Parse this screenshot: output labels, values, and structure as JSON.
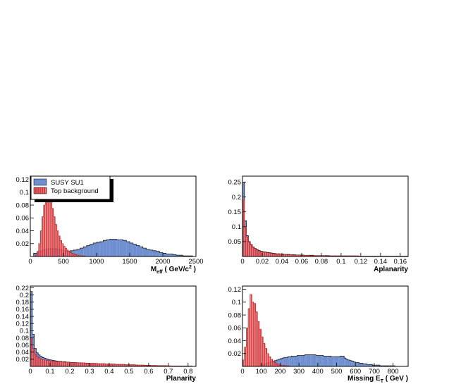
{
  "colors": {
    "signal": "#6f8fd0",
    "background": "#d93a3e",
    "outline": "#000000",
    "frame": "#000000"
  },
  "legend": {
    "entries": [
      "SUSY SU1",
      "Top background"
    ]
  },
  "chart_data": [
    {
      "type": "histogram",
      "xlabel": "M",
      "xlabel_sub": "eff",
      "xlabel_unit": " ( GeV/c",
      "xlabel_sup": "2",
      "xlabel_end": " )",
      "xlim": [
        0,
        2500
      ],
      "ylim": [
        0,
        0.125
      ],
      "xticks": [
        0,
        500,
        1000,
        1500,
        2000,
        2500
      ],
      "yticks": [
        0.02,
        0.04,
        0.06,
        0.08,
        0.1,
        0.12
      ],
      "xtick_labels": [
        "0",
        "500",
        "1000",
        "1500",
        "2000",
        "2500"
      ],
      "ytick_labels": [
        "0.02",
        "0.04",
        "0.06",
        "0.08",
        "0.1",
        "0.12"
      ],
      "legend_position": "top-left",
      "series": [
        {
          "name": "SUSY SU1",
          "bin_start": 0,
          "bin_width": 50,
          "values": [
            0.0,
            0.005,
            0.007,
            0.009,
            0.011,
            0.012,
            0.012,
            0.012,
            0.011,
            0.01,
            0.009,
            0.008,
            0.009,
            0.01,
            0.011,
            0.013,
            0.015,
            0.017,
            0.019,
            0.021,
            0.022,
            0.023,
            0.025,
            0.026,
            0.027,
            0.027,
            0.026,
            0.026,
            0.025,
            0.023,
            0.021,
            0.019,
            0.017,
            0.015,
            0.013,
            0.011,
            0.01,
            0.009,
            0.008,
            0.006,
            0.005,
            0.004,
            0.004,
            0.003,
            0.002,
            0.002,
            0.001,
            0.001,
            0.001,
            0.0
          ]
        },
        {
          "name": "Top background",
          "bin_start": 0,
          "bin_width": 25,
          "values": [
            0,
            0,
            0,
            0.002,
            0.008,
            0.02,
            0.04,
            0.062,
            0.08,
            0.09,
            0.096,
            0.093,
            0.085,
            0.075,
            0.062,
            0.05,
            0.04,
            0.032,
            0.025,
            0.02,
            0.016,
            0.013,
            0.01,
            0.008,
            0.006,
            0.005,
            0.004,
            0.003,
            0.002,
            0.002,
            0.001,
            0.001,
            0.001,
            0,
            0,
            0,
            0,
            0,
            0,
            0,
            0,
            0,
            0,
            0,
            0,
            0,
            0,
            0,
            0,
            0
          ]
        }
      ]
    },
    {
      "type": "histogram",
      "xlabel": "Aplanarity",
      "xlim": [
        0,
        0.168
      ],
      "ylim": [
        0,
        0.27
      ],
      "xticks": [
        0,
        0.02,
        0.04,
        0.06,
        0.08,
        0.1,
        0.12,
        0.14,
        0.16
      ],
      "yticks": [
        0.05,
        0.1,
        0.15,
        0.2,
        0.25
      ],
      "xtick_labels": [
        "0",
        "0.02",
        "0.04",
        "0.06",
        "0.08",
        "0.1",
        "0.12",
        "0.14",
        "0.16"
      ],
      "ytick_labels": [
        "0.05",
        "0.1",
        "0.15",
        "0.2",
        "0.25"
      ],
      "series": [
        {
          "name": "SUSY SU1",
          "bin_start": 0,
          "bin_width": 0.002,
          "values": [
            0.25,
            0.12,
            0.07,
            0.05,
            0.04,
            0.032,
            0.027,
            0.023,
            0.02,
            0.018,
            0.016,
            0.015,
            0.014,
            0.013,
            0.012,
            0.011,
            0.01,
            0.009,
            0.009,
            0.008,
            0.008,
            0.007,
            0.007,
            0.007,
            0.006,
            0.006,
            0.006,
            0.005,
            0.005,
            0.005,
            0.005,
            0.004,
            0.004,
            0.004,
            0.004,
            0.004,
            0.003,
            0.003,
            0.003,
            0.003,
            0.003,
            0.003,
            0.003,
            0.003,
            0.002,
            0.002,
            0.002,
            0.002,
            0.002,
            0.002,
            0.002,
            0.002,
            0.002,
            0.002,
            0.002,
            0.002,
            0.002,
            0.002,
            0.002,
            0.001,
            0.001,
            0.001,
            0.001,
            0.001,
            0.001,
            0.001,
            0.001,
            0.001,
            0.001,
            0.001,
            0.001,
            0.001,
            0.001,
            0.001,
            0.001,
            0.001,
            0.001,
            0.001,
            0.001,
            0.001,
            0.001,
            0.001,
            0.001,
            0.001
          ]
        },
        {
          "name": "Top background",
          "bin_start": 0,
          "bin_width": 0.002,
          "values": [
            0.19,
            0.1,
            0.065,
            0.048,
            0.038,
            0.031,
            0.026,
            0.022,
            0.019,
            0.017,
            0.015,
            0.014,
            0.013,
            0.012,
            0.011,
            0.01,
            0.009,
            0.009,
            0.008,
            0.008,
            0.007,
            0.007,
            0.006,
            0.006,
            0.006,
            0.005,
            0.005,
            0.005,
            0.005,
            0.004,
            0.004,
            0.004,
            0.004,
            0.004,
            0.003,
            0.003,
            0.003,
            0.003,
            0.003,
            0.003,
            0.003,
            0.003,
            0.002,
            0.002,
            0.002,
            0.002,
            0.002,
            0.002,
            0.002,
            0.002,
            0.002,
            0.002,
            0.002,
            0.002,
            0.002,
            0.002,
            0.002,
            0.002,
            0.001,
            0.001,
            0.001,
            0.001,
            0.001,
            0.001,
            0.001,
            0.001,
            0.001,
            0.001,
            0.001,
            0.001,
            0.001,
            0.001,
            0.001,
            0.001,
            0.001,
            0.001,
            0.001,
            0.001,
            0.001,
            0.001,
            0.001,
            0.001,
            0.001,
            0.001
          ]
        }
      ]
    },
    {
      "type": "histogram",
      "xlabel": "Planarity",
      "xlim": [
        0,
        0.84
      ],
      "ylim": [
        0,
        0.225
      ],
      "xticks": [
        0,
        0.1,
        0.2,
        0.3,
        0.4,
        0.5,
        0.6,
        0.7,
        0.8
      ],
      "yticks": [
        0.02,
        0.04,
        0.06,
        0.08,
        0.1,
        0.12,
        0.14,
        0.16,
        0.18,
        0.2,
        0.22
      ],
      "xtick_labels": [
        "0",
        "0.1",
        "0.2",
        "0.3",
        "0.4",
        "0.5",
        "0.6",
        "0.7",
        "0.8"
      ],
      "ytick_labels": [
        "0.02",
        "0.04",
        "0.06",
        "0.08",
        "0.1",
        "0.12",
        "0.14",
        "0.16",
        "0.18",
        "0.2",
        "0.22"
      ],
      "series": [
        {
          "name": "SUSY SU1",
          "bin_start": 0,
          "bin_width": 0.01,
          "values": [
            0.21,
            0.09,
            0.05,
            0.038,
            0.032,
            0.028,
            0.025,
            0.023,
            0.021,
            0.019,
            0.018,
            0.017,
            0.016,
            0.015,
            0.014,
            0.014,
            0.013,
            0.013,
            0.012,
            0.012,
            0.011,
            0.011,
            0.011,
            0.01,
            0.01,
            0.01,
            0.009,
            0.009,
            0.009,
            0.009,
            0.008,
            0.008,
            0.008,
            0.008,
            0.007,
            0.007,
            0.007,
            0.007,
            0.006,
            0.006,
            0.006,
            0.006,
            0.006,
            0.005,
            0.005,
            0.005,
            0.005,
            0.005,
            0.004,
            0.004,
            0.004,
            0.004,
            0.004,
            0.004,
            0.003,
            0.003,
            0.003,
            0.003,
            0.003,
            0.003,
            0.003,
            0.002,
            0.002,
            0.002,
            0.002,
            0.002,
            0.002,
            0.002,
            0.002,
            0.001,
            0.001,
            0.001,
            0.001,
            0.001,
            0.001,
            0.001,
            0.001,
            0.001,
            0.001,
            0.001,
            0.001,
            0.001,
            0.0,
            0.0
          ]
        },
        {
          "name": "Top background",
          "bin_start": 0,
          "bin_width": 0.01,
          "values": [
            0.08,
            0.05,
            0.035,
            0.028,
            0.024,
            0.021,
            0.019,
            0.018,
            0.017,
            0.016,
            0.015,
            0.015,
            0.014,
            0.014,
            0.013,
            0.013,
            0.013,
            0.012,
            0.012,
            0.012,
            0.011,
            0.011,
            0.011,
            0.011,
            0.01,
            0.01,
            0.01,
            0.01,
            0.009,
            0.009,
            0.009,
            0.009,
            0.009,
            0.008,
            0.008,
            0.008,
            0.008,
            0.008,
            0.007,
            0.007,
            0.007,
            0.007,
            0.007,
            0.006,
            0.006,
            0.006,
            0.006,
            0.006,
            0.005,
            0.005,
            0.005,
            0.005,
            0.005,
            0.004,
            0.004,
            0.004,
            0.004,
            0.004,
            0.003,
            0.003,
            0.003,
            0.003,
            0.003,
            0.003,
            0.002,
            0.002,
            0.002,
            0.002,
            0.002,
            0.002,
            0.002,
            0.001,
            0.001,
            0.001,
            0.001,
            0.001,
            0.001,
            0.001,
            0.001,
            0.001,
            0.0,
            0.0,
            0.0,
            0.0
          ]
        }
      ]
    },
    {
      "type": "histogram",
      "xlabel": "Missing E",
      "xlabel_sub": "T",
      "xlabel_unit": " ( GeV )",
      "xlim": [
        0,
        880
      ],
      "ylim": [
        0,
        0.125
      ],
      "xticks": [
        0,
        100,
        200,
        300,
        400,
        500,
        600,
        700,
        800
      ],
      "yticks": [
        0.02,
        0.04,
        0.06,
        0.08,
        0.1,
        0.12
      ],
      "xtick_labels": [
        "0",
        "100",
        "200",
        "300",
        "400",
        "500",
        "600",
        "700",
        "800"
      ],
      "ytick_labels": [
        "0.02",
        "0.04",
        "0.06",
        "0.08",
        "0.1",
        "0.12"
      ],
      "series": [
        {
          "name": "SUSY SU1",
          "bin_start": 0,
          "bin_width": 10,
          "values": [
            0,
            0,
            0,
            0,
            0,
            0,
            0,
            0,
            0,
            0.001,
            0.002,
            0.003,
            0.004,
            0.005,
            0.006,
            0.007,
            0.008,
            0.009,
            0.01,
            0.011,
            0.012,
            0.013,
            0.014,
            0.014,
            0.015,
            0.015,
            0.016,
            0.016,
            0.016,
            0.017,
            0.017,
            0.017,
            0.017,
            0.018,
            0.018,
            0.018,
            0.018,
            0.018,
            0.018,
            0.017,
            0.017,
            0.017,
            0.017,
            0.016,
            0.016,
            0.016,
            0.016,
            0.015,
            0.015,
            0.015,
            0.015,
            0.015,
            0.016,
            0.016,
            0.013,
            0.011,
            0.01,
            0.009,
            0.008,
            0.007,
            0.006,
            0.006,
            0.005,
            0.005,
            0.004,
            0.004,
            0.003,
            0.003,
            0.003,
            0.002,
            0.002,
            0.002,
            0.002,
            0.001,
            0.001,
            0.001,
            0.001,
            0.001,
            0.001,
            0.001,
            0.001,
            0.0,
            0.0,
            0.0,
            0.0,
            0.0,
            0.0,
            0.0
          ]
        },
        {
          "name": "Top background",
          "bin_start": 0,
          "bin_width": 10,
          "values": [
            0.01,
            0.03,
            0.06,
            0.09,
            0.112,
            0.1,
            0.098,
            0.085,
            0.07,
            0.058,
            0.046,
            0.036,
            0.028,
            0.02,
            0.015,
            0.011,
            0.008,
            0.006,
            0.004,
            0.003,
            0.002,
            0.002,
            0.001,
            0.001,
            0.001,
            0,
            0,
            0,
            0,
            0,
            0,
            0,
            0,
            0,
            0,
            0,
            0,
            0,
            0,
            0,
            0,
            0,
            0,
            0,
            0,
            0,
            0,
            0,
            0,
            0,
            0,
            0,
            0,
            0,
            0,
            0,
            0,
            0,
            0,
            0,
            0,
            0,
            0,
            0,
            0,
            0,
            0,
            0,
            0,
            0,
            0,
            0,
            0,
            0,
            0,
            0,
            0,
            0,
            0,
            0,
            0,
            0,
            0,
            0,
            0,
            0,
            0,
            0
          ]
        }
      ]
    }
  ]
}
